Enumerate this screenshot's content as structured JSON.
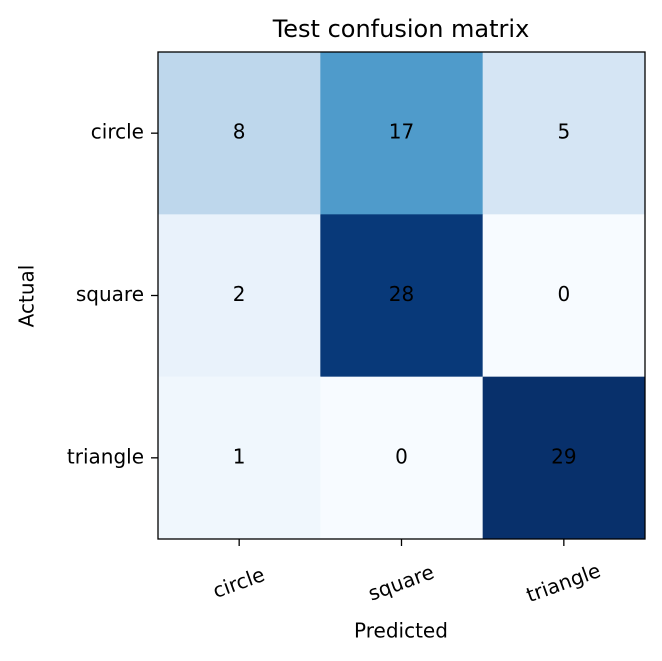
{
  "chart_data": {
    "type": "heatmap",
    "title": "Test confusion matrix",
    "x_label": "Predicted",
    "y_label": "Actual",
    "x_categories": [
      "circle",
      "square",
      "triangle"
    ],
    "y_categories": [
      "circle",
      "square",
      "triangle"
    ],
    "values": [
      [
        8,
        17,
        5
      ],
      [
        2,
        28,
        0
      ],
      [
        1,
        0,
        29
      ]
    ],
    "colormap": "Blues"
  }
}
